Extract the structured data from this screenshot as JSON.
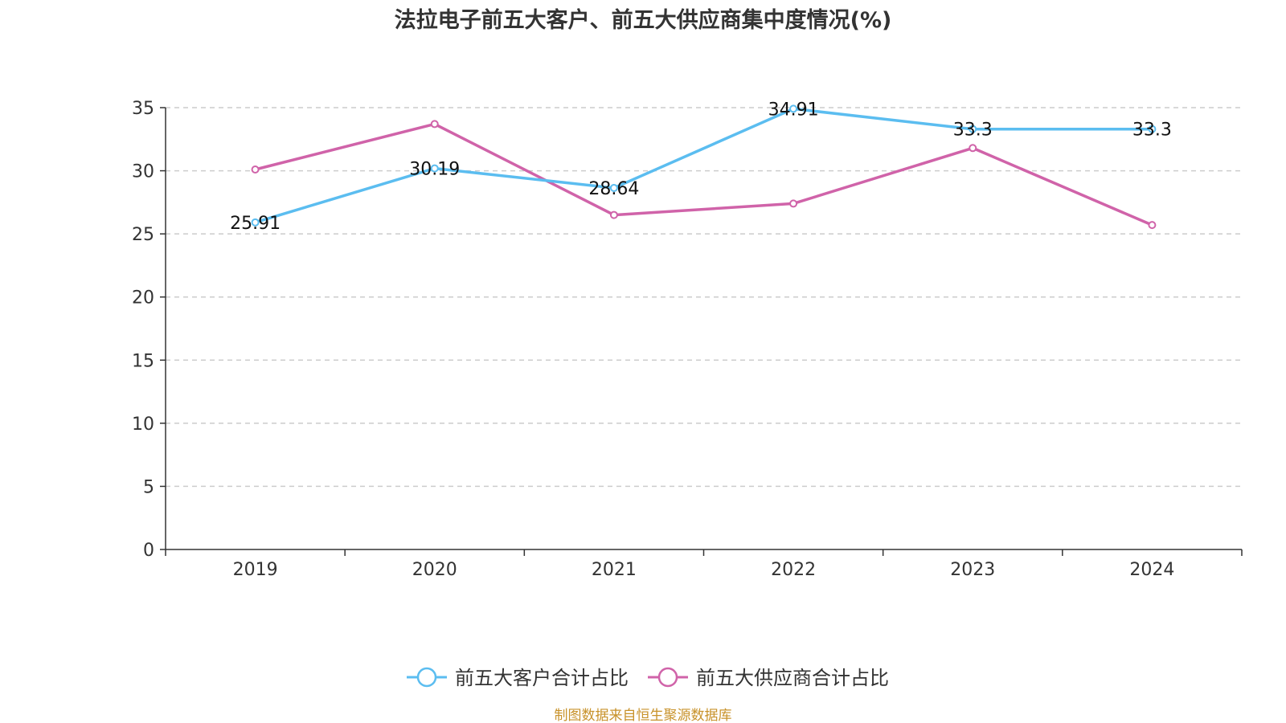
{
  "chart_data": {
    "type": "line",
    "title": "法拉电子前五大客户、前五大供应商集中度情况(%)",
    "categories": [
      "2019",
      "2020",
      "2021",
      "2022",
      "2023",
      "2024"
    ],
    "ylim": [
      0,
      35
    ],
    "yticks": [
      0,
      5,
      10,
      15,
      20,
      25,
      30,
      35
    ],
    "grid": true,
    "legend_position": "bottom-center",
    "series": [
      {
        "name": "前五大客户合计占比",
        "color": "#5bbdf0",
        "values": [
          25.91,
          30.19,
          28.64,
          34.91,
          33.3,
          33.3
        ],
        "labels": [
          "25.91",
          "30.19",
          "28.64",
          "34.91",
          "33.3",
          "33.3"
        ]
      },
      {
        "name": "前五大供应商合计占比",
        "color": "#d063a9",
        "values": [
          30.1,
          33.7,
          26.5,
          27.4,
          31.8,
          25.7
        ]
      }
    ]
  },
  "source_note": "制图数据来自恒生聚源数据库",
  "colors": {
    "axis": "#333333",
    "grid": "#cccccc",
    "source": "#c8922a"
  }
}
